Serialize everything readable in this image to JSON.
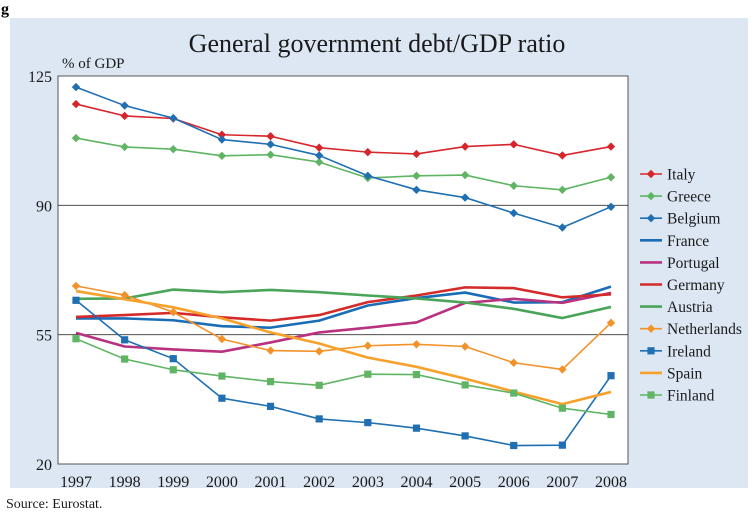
{
  "figure_label": "g",
  "source": "Source: Eurostat.",
  "chart_data": {
    "type": "line",
    "title": "General government debt/GDP ratio",
    "ylabel": "% of GDP",
    "xlabel": "",
    "ylim": [
      20,
      125
    ],
    "yticks": [
      20,
      55,
      90,
      125
    ],
    "grid": "horizontal",
    "legend": "right",
    "background": "#dce7f3",
    "x": [
      "1997",
      "1998",
      "1999",
      "2000",
      "2001",
      "2002",
      "2003",
      "2004",
      "2005",
      "2006",
      "2007",
      "2008"
    ],
    "series": [
      {
        "name": "Italy",
        "color": "#d7262b",
        "marker": "diamond",
        "values": [
          117.4,
          114.2,
          113.5,
          109.1,
          108.7,
          105.6,
          104.4,
          103.9,
          105.9,
          106.5,
          103.5,
          105.9
        ]
      },
      {
        "name": "Greece",
        "color": "#5fb563",
        "marker": "diamond",
        "values": [
          108.2,
          105.8,
          105.2,
          103.4,
          103.7,
          101.7,
          97.4,
          98.0,
          98.2,
          95.3,
          94.2,
          97.6
        ]
      },
      {
        "name": "Belgium",
        "color": "#1f6fb2",
        "marker": "diamond",
        "values": [
          122.0,
          117.0,
          113.6,
          107.8,
          106.5,
          103.5,
          98.0,
          94.2,
          92.1,
          87.9,
          84.0,
          89.6
        ]
      },
      {
        "name": "France",
        "color": "#1a6db5",
        "marker": "none",
        "values": [
          59.4,
          59.4,
          58.9,
          57.3,
          56.9,
          58.8,
          62.9,
          64.9,
          66.4,
          63.7,
          63.8,
          68.0
        ]
      },
      {
        "name": "Portugal",
        "color": "#b8327f",
        "marker": "none",
        "values": [
          55.5,
          51.8,
          51.0,
          50.4,
          52.9,
          55.6,
          56.9,
          58.3,
          63.6,
          64.7,
          63.6,
          66.3
        ]
      },
      {
        "name": "Germany",
        "color": "#d42a2a",
        "marker": "none",
        "values": [
          59.8,
          60.3,
          60.9,
          59.7,
          58.8,
          60.3,
          63.8,
          65.6,
          67.8,
          67.6,
          65.1,
          65.9
        ]
      },
      {
        "name": "Austria",
        "color": "#4aa55a",
        "marker": "none",
        "values": [
          64.7,
          64.8,
          67.2,
          66.5,
          67.1,
          66.5,
          65.6,
          64.8,
          63.7,
          62.0,
          59.5,
          62.5
        ]
      },
      {
        "name": "Netherlands",
        "color": "#f4922a",
        "marker": "diamond",
        "values": [
          68.2,
          65.7,
          61.1,
          53.8,
          50.7,
          50.5,
          52.0,
          52.4,
          51.8,
          47.4,
          45.6,
          58.2
        ]
      },
      {
        "name": "Ireland",
        "color": "#1f6fb2",
        "marker": "square",
        "values": [
          64.3,
          53.6,
          48.5,
          37.8,
          35.6,
          32.2,
          31.2,
          29.7,
          27.6,
          25.0,
          25.1,
          43.9
        ]
      },
      {
        "name": "Spain",
        "color": "#f7a12d",
        "marker": "none",
        "values": [
          66.8,
          64.6,
          62.4,
          59.4,
          55.6,
          52.6,
          48.8,
          46.3,
          43.1,
          39.6,
          36.2,
          39.5
        ]
      },
      {
        "name": "Finland",
        "color": "#5fb563",
        "marker": "square",
        "values": [
          53.9,
          48.4,
          45.5,
          43.8,
          42.3,
          41.3,
          44.3,
          44.2,
          41.4,
          39.2,
          35.1,
          33.4
        ]
      }
    ]
  }
}
